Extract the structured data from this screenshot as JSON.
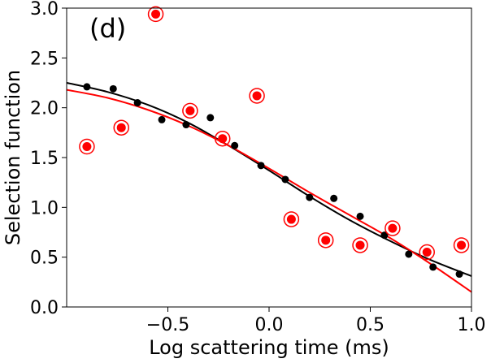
{
  "chart_data": {
    "type": "scatter",
    "panel_label": "(d)",
    "xlabel": "Log scattering time (ms)",
    "ylabel": "Selection function",
    "xlim": [
      -1.0,
      1.0
    ],
    "ylim": [
      0.0,
      3.0
    ],
    "xticks": [
      -0.5,
      0.0,
      0.5,
      1.0
    ],
    "xtick_labels": [
      "−0.5",
      "0.0",
      "0.5",
      "1.0"
    ],
    "yticks": [
      0.0,
      0.5,
      1.0,
      1.5,
      2.0,
      2.5,
      3.0
    ],
    "ytick_labels": [
      "0.0",
      "0.5",
      "1.0",
      "1.5",
      "2.0",
      "2.5",
      "3.0"
    ],
    "series": [
      {
        "name": "black points",
        "color": "#000000",
        "marker": "dot",
        "x": [
          -0.9,
          -0.77,
          -0.65,
          -0.53,
          -0.41,
          -0.29,
          -0.17,
          -0.04,
          0.08,
          0.2,
          0.32,
          0.45,
          0.57,
          0.69,
          0.81,
          0.94
        ],
        "y": [
          2.21,
          2.19,
          2.05,
          1.88,
          1.83,
          1.9,
          1.62,
          1.42,
          1.28,
          1.1,
          1.09,
          0.91,
          0.72,
          0.53,
          0.4,
          0.33
        ]
      },
      {
        "name": "red circled points",
        "color": "#ff0000",
        "marker": "circled-dot",
        "x": [
          -0.9,
          -0.73,
          -0.56,
          -0.39,
          -0.23,
          -0.06,
          0.11,
          0.28,
          0.45,
          0.61,
          0.78,
          0.95
        ],
        "y": [
          1.61,
          1.8,
          2.94,
          1.97,
          1.69,
          2.12,
          0.88,
          0.67,
          0.62,
          0.79,
          0.55,
          0.62
        ]
      }
    ],
    "fits": [
      {
        "name": "black fit",
        "color": "#000000",
        "x": [
          -1.0,
          -0.8,
          -0.6,
          -0.4,
          -0.2,
          0.0,
          0.2,
          0.4,
          0.6,
          0.8,
          1.0
        ],
        "y": [
          2.25,
          2.16,
          2.03,
          1.85,
          1.62,
          1.37,
          1.11,
          0.87,
          0.66,
          0.47,
          0.31
        ]
      },
      {
        "name": "red fit",
        "color": "#ff0000",
        "x": [
          -1.0,
          -0.8,
          -0.6,
          -0.4,
          -0.2,
          0.0,
          0.2,
          0.4,
          0.6,
          0.8,
          1.0
        ],
        "y": [
          2.18,
          2.1,
          1.98,
          1.82,
          1.62,
          1.39,
          1.15,
          0.92,
          0.69,
          0.43,
          0.15
        ]
      }
    ]
  }
}
